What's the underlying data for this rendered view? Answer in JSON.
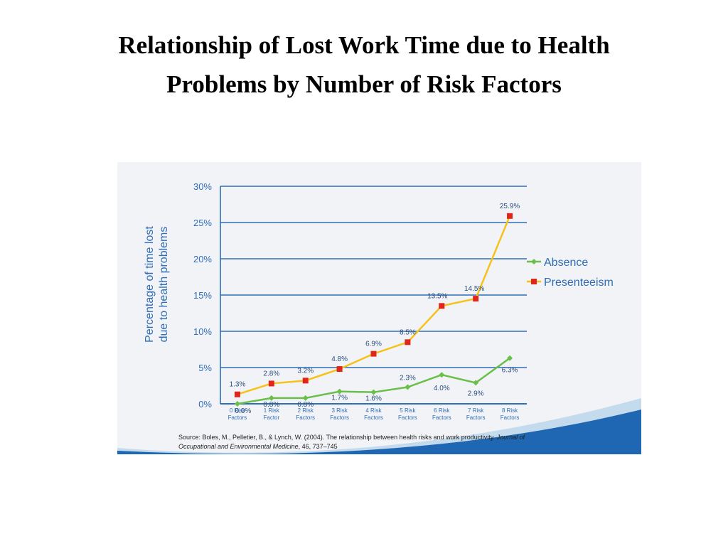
{
  "slide": {
    "title_line1": "Relationship of Lost Work Time due to Health",
    "title_line2": "Problems by Number of Risk Factors"
  },
  "source": {
    "text_prefix": "Source: Boles, M., Pelletier, B., & Lynch, W. (2004). The relationship between health risks and work productivity.",
    "journal": "Journal of Occupational and Environmental Medicine",
    "text_suffix": ", 46, 737–745"
  },
  "colors": {
    "axis_blue": "#2f6db5",
    "absence": "#6abf4b",
    "presenteeism_line": "#f5c21b",
    "presenteeism_marker": "#e0261b",
    "wave_blue": "#1f67b2",
    "wave_light": "#9ec6e8"
  },
  "chart_data": {
    "type": "line",
    "title": "",
    "ylabel_lines": [
      "Percentage of time lost",
      "due to health problems"
    ],
    "xlabel": "",
    "ylim": [
      0,
      30
    ],
    "yticks": [
      "0%",
      "5%",
      "10%",
      "15%",
      "20%",
      "25%",
      "30%"
    ],
    "ytick_values": [
      0,
      5,
      10,
      15,
      20,
      25,
      30
    ],
    "grid": true,
    "legend_position": "right",
    "categories": [
      [
        "0 Risk",
        "Factors"
      ],
      [
        "1 Risk",
        "Factor"
      ],
      [
        "2 Risk",
        "Factors"
      ],
      [
        "3 Risk",
        "Factors"
      ],
      [
        "4 Risk",
        "Factors"
      ],
      [
        "5 Risk",
        "Factors"
      ],
      [
        "6 Risk",
        "Factors"
      ],
      [
        "7 Risk",
        "Factors"
      ],
      [
        "8 Risk",
        "Factors"
      ]
    ],
    "series": [
      {
        "name": "Absence",
        "values": [
          0.0,
          0.8,
          0.8,
          1.7,
          1.6,
          2.3,
          4.0,
          2.9,
          6.3
        ],
        "labels": [
          "0.0%",
          "0.8%",
          "0.8%",
          "1.7%",
          "1.6%",
          "2.3%",
          "4.0%",
          "2.9%",
          "6.3%"
        ]
      },
      {
        "name": "Presenteeism",
        "values": [
          1.3,
          2.8,
          3.2,
          4.8,
          6.9,
          8.5,
          13.5,
          14.5,
          25.9
        ],
        "labels": [
          "1.3%",
          "2.8%",
          "3.2%",
          "4.8%",
          "6.9%",
          "8.5%",
          "13.5%",
          "14.5%",
          "25.9%"
        ]
      }
    ]
  }
}
